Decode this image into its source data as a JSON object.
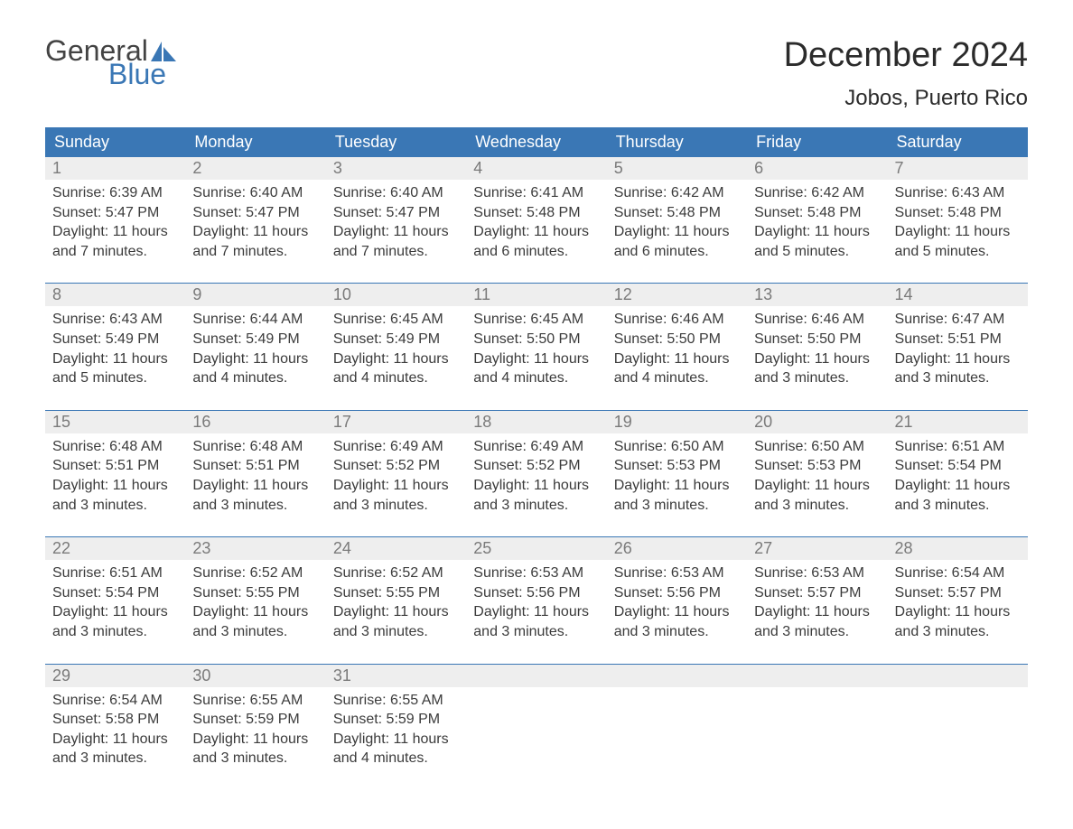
{
  "logo": {
    "top": "General",
    "bottom": "Blue"
  },
  "title": "December 2024",
  "location": "Jobos, Puerto Rico",
  "colors": {
    "header_bg": "#3a77b5",
    "header_fg": "#ffffff",
    "daynum_bg": "#eeeeee",
    "daynum_fg": "#7a7a7a",
    "body_fg": "#3b3b3b",
    "rule": "#3a77b5",
    "logo_top": "#434343",
    "logo_bottom": "#3a77b5"
  },
  "day_headers": [
    "Sunday",
    "Monday",
    "Tuesday",
    "Wednesday",
    "Thursday",
    "Friday",
    "Saturday"
  ],
  "weeks": [
    [
      {
        "n": "1",
        "sr": "6:39 AM",
        "ss": "5:47 PM",
        "dl": "11 hours and 7 minutes."
      },
      {
        "n": "2",
        "sr": "6:40 AM",
        "ss": "5:47 PM",
        "dl": "11 hours and 7 minutes."
      },
      {
        "n": "3",
        "sr": "6:40 AM",
        "ss": "5:47 PM",
        "dl": "11 hours and 7 minutes."
      },
      {
        "n": "4",
        "sr": "6:41 AM",
        "ss": "5:48 PM",
        "dl": "11 hours and 6 minutes."
      },
      {
        "n": "5",
        "sr": "6:42 AM",
        "ss": "5:48 PM",
        "dl": "11 hours and 6 minutes."
      },
      {
        "n": "6",
        "sr": "6:42 AM",
        "ss": "5:48 PM",
        "dl": "11 hours and 5 minutes."
      },
      {
        "n": "7",
        "sr": "6:43 AM",
        "ss": "5:48 PM",
        "dl": "11 hours and 5 minutes."
      }
    ],
    [
      {
        "n": "8",
        "sr": "6:43 AM",
        "ss": "5:49 PM",
        "dl": "11 hours and 5 minutes."
      },
      {
        "n": "9",
        "sr": "6:44 AM",
        "ss": "5:49 PM",
        "dl": "11 hours and 4 minutes."
      },
      {
        "n": "10",
        "sr": "6:45 AM",
        "ss": "5:49 PM",
        "dl": "11 hours and 4 minutes."
      },
      {
        "n": "11",
        "sr": "6:45 AM",
        "ss": "5:50 PM",
        "dl": "11 hours and 4 minutes."
      },
      {
        "n": "12",
        "sr": "6:46 AM",
        "ss": "5:50 PM",
        "dl": "11 hours and 4 minutes."
      },
      {
        "n": "13",
        "sr": "6:46 AM",
        "ss": "5:50 PM",
        "dl": "11 hours and 3 minutes."
      },
      {
        "n": "14",
        "sr": "6:47 AM",
        "ss": "5:51 PM",
        "dl": "11 hours and 3 minutes."
      }
    ],
    [
      {
        "n": "15",
        "sr": "6:48 AM",
        "ss": "5:51 PM",
        "dl": "11 hours and 3 minutes."
      },
      {
        "n": "16",
        "sr": "6:48 AM",
        "ss": "5:51 PM",
        "dl": "11 hours and 3 minutes."
      },
      {
        "n": "17",
        "sr": "6:49 AM",
        "ss": "5:52 PM",
        "dl": "11 hours and 3 minutes."
      },
      {
        "n": "18",
        "sr": "6:49 AM",
        "ss": "5:52 PM",
        "dl": "11 hours and 3 minutes."
      },
      {
        "n": "19",
        "sr": "6:50 AM",
        "ss": "5:53 PM",
        "dl": "11 hours and 3 minutes."
      },
      {
        "n": "20",
        "sr": "6:50 AM",
        "ss": "5:53 PM",
        "dl": "11 hours and 3 minutes."
      },
      {
        "n": "21",
        "sr": "6:51 AM",
        "ss": "5:54 PM",
        "dl": "11 hours and 3 minutes."
      }
    ],
    [
      {
        "n": "22",
        "sr": "6:51 AM",
        "ss": "5:54 PM",
        "dl": "11 hours and 3 minutes."
      },
      {
        "n": "23",
        "sr": "6:52 AM",
        "ss": "5:55 PM",
        "dl": "11 hours and 3 minutes."
      },
      {
        "n": "24",
        "sr": "6:52 AM",
        "ss": "5:55 PM",
        "dl": "11 hours and 3 minutes."
      },
      {
        "n": "25",
        "sr": "6:53 AM",
        "ss": "5:56 PM",
        "dl": "11 hours and 3 minutes."
      },
      {
        "n": "26",
        "sr": "6:53 AM",
        "ss": "5:56 PM",
        "dl": "11 hours and 3 minutes."
      },
      {
        "n": "27",
        "sr": "6:53 AM",
        "ss": "5:57 PM",
        "dl": "11 hours and 3 minutes."
      },
      {
        "n": "28",
        "sr": "6:54 AM",
        "ss": "5:57 PM",
        "dl": "11 hours and 3 minutes."
      }
    ],
    [
      {
        "n": "29",
        "sr": "6:54 AM",
        "ss": "5:58 PM",
        "dl": "11 hours and 3 minutes."
      },
      {
        "n": "30",
        "sr": "6:55 AM",
        "ss": "5:59 PM",
        "dl": "11 hours and 3 minutes."
      },
      {
        "n": "31",
        "sr": "6:55 AM",
        "ss": "5:59 PM",
        "dl": "11 hours and 4 minutes."
      },
      null,
      null,
      null,
      null
    ]
  ],
  "labels": {
    "sunrise": "Sunrise: ",
    "sunset": "Sunset: ",
    "daylight": "Daylight: "
  }
}
